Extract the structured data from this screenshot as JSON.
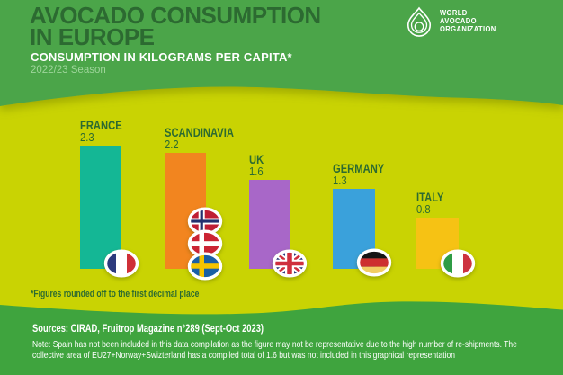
{
  "header": {
    "title_line1": "AVOCADO CONSUMPTION",
    "title_line2": "IN EUROPE",
    "subtitle": "CONSUMPTION IN KILOGRAMS PER CAPITA*",
    "season": "2022/23 Season",
    "logo": {
      "line1": "WORLD",
      "line2": "AVOCADO",
      "line3": "ORGANIZATION"
    }
  },
  "chart_data": {
    "type": "bar",
    "title": "Avocado Consumption in Europe",
    "subtitle": "Consumption in kilograms per capita",
    "season": "2022/23",
    "categories": [
      "FRANCE",
      "SCANDINAVIA",
      "UK",
      "GERMANY",
      "ITALY"
    ],
    "values": [
      2.3,
      2.2,
      1.6,
      1.3,
      0.8
    ],
    "value_labels": [
      "2.3",
      "2.2",
      "1.6",
      "1.3",
      "0.8"
    ],
    "bar_colors": [
      "#14b795",
      "#f2851f",
      "#a867c8",
      "#3aa1db",
      "#f6c214"
    ],
    "flags": [
      [
        "france"
      ],
      [
        "norway",
        "denmark",
        "sweden"
      ],
      [
        "uk"
      ],
      [
        "germany"
      ],
      [
        "italy"
      ]
    ],
    "legend_position": "none",
    "grid": false,
    "ylim": [
      0,
      2.3
    ]
  },
  "footnote": "*Figures rounded off to the first decimal place",
  "footer": {
    "sources": "Sources: CIRAD, Fruitrop Magazine n°289 (Sept-Oct 2023)",
    "note": "Note: Spain has not been included in this data compilation as the figure may not be representative due to the high number of re-shipments. The collective area of EU27+Norway+Swizterland has a compiled total of 1.6 but was not included in this graphical representation"
  },
  "colors": {
    "header_green": "#4ba548",
    "footer_green": "#3fa43e",
    "chart_background": "#c9d303",
    "dark_green_text": "#2c6a31",
    "white_text": "#ffffff",
    "season_text": "#9ed59b"
  }
}
